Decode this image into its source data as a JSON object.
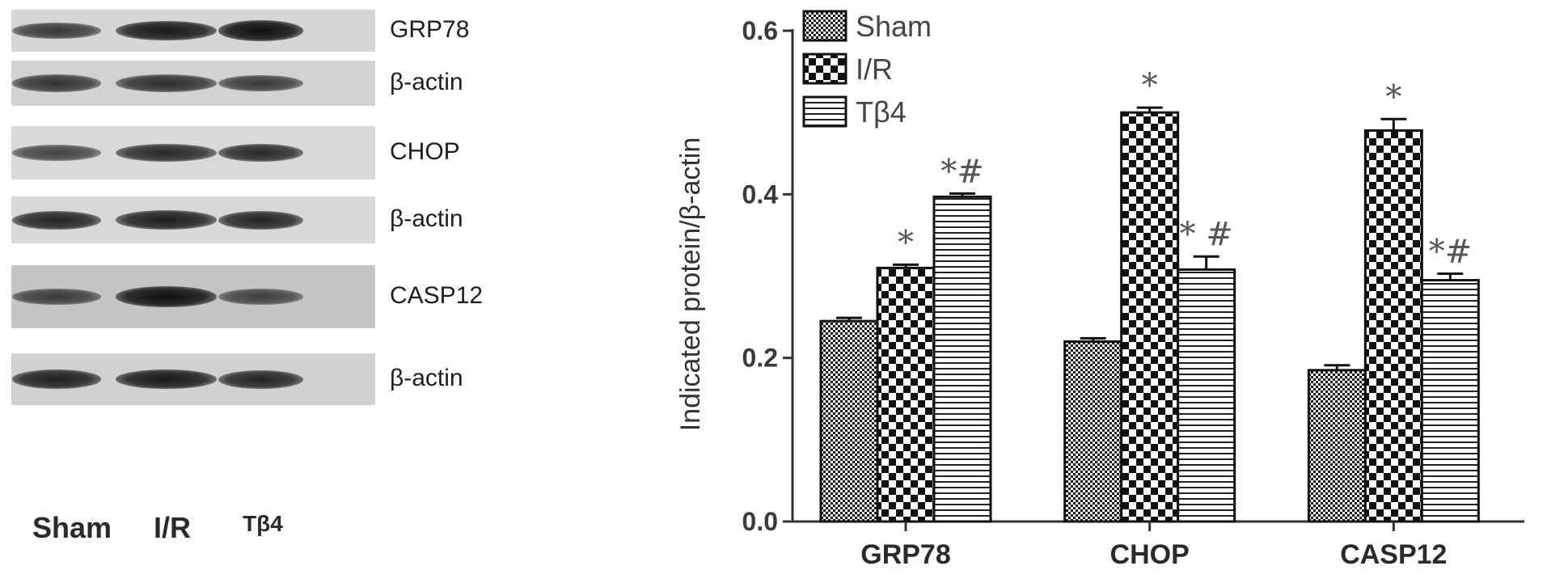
{
  "blot": {
    "panels": [
      {
        "label": "GRP78",
        "bg": "#d6d6d6",
        "intensities": [
          0.55,
          0.85,
          0.95
        ]
      },
      {
        "label": "β-actin",
        "bg": "#d2d2d2",
        "intensities": [
          0.6,
          0.65,
          0.55
        ]
      },
      {
        "label": "CHOP",
        "bg": "#d9d9d9",
        "intensities": [
          0.45,
          0.7,
          0.7
        ]
      },
      {
        "label": "β-actin",
        "bg": "#d8d8d8",
        "intensities": [
          0.75,
          0.8,
          0.75
        ]
      },
      {
        "label": "CASP12",
        "bg": "#c4c4c4",
        "intensities": [
          0.55,
          0.95,
          0.5
        ]
      },
      {
        "label": "β-actin",
        "bg": "#d0d0d0",
        "intensities": [
          0.8,
          0.85,
          0.75
        ]
      }
    ],
    "lanes": [
      "Sham",
      "I/R",
      "Tβ4"
    ]
  },
  "chart_data": {
    "type": "bar",
    "categories": [
      "GRP78",
      "CHOP",
      "CASP12"
    ],
    "series": [
      {
        "name": "Sham",
        "values": [
          0.245,
          0.22,
          0.185
        ],
        "errors": [
          0.004,
          0.004,
          0.006
        ],
        "pattern": "fine-check",
        "marks": [
          "",
          "",
          ""
        ]
      },
      {
        "name": "I/R",
        "values": [
          0.31,
          0.5,
          0.478
        ],
        "errors": [
          0.004,
          0.006,
          0.014
        ],
        "pattern": "coarse-check",
        "marks": [
          "*",
          "*",
          "*"
        ]
      },
      {
        "name": "Tβ4",
        "values": [
          0.397,
          0.308,
          0.295
        ],
        "errors": [
          0.004,
          0.016,
          0.008
        ],
        "pattern": "horizontal-lines",
        "marks": [
          "*#",
          "* #",
          "*#"
        ]
      }
    ],
    "ylabel": "Indicated protein/β-actin",
    "ylim": [
      0,
      0.6
    ],
    "yticks": [
      "0.0",
      "0.2",
      "0.4",
      "0.6"
    ],
    "legend_position": "top-left",
    "grid": false
  }
}
